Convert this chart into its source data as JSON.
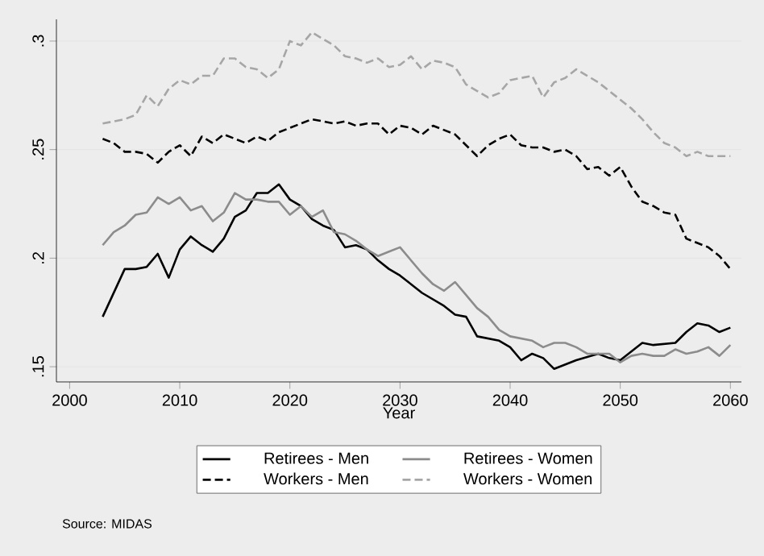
{
  "chart_data": {
    "type": "line",
    "xlabel": "Year",
    "xlim": [
      1998.8,
      2061
    ],
    "ylim": [
      0.143,
      0.31
    ],
    "xticks": [
      2000,
      2010,
      2020,
      2030,
      2040,
      2050,
      2060
    ],
    "yticks": [
      {
        "value": 0.15,
        "label": ".15"
      },
      {
        "value": 0.2,
        "label": ".2"
      },
      {
        "value": 0.25,
        "label": ".25"
      },
      {
        "value": 0.3,
        "label": ".3"
      }
    ],
    "grid": "y",
    "legend": "bottom",
    "annotations": [
      "Source: MIDAS"
    ],
    "series": [
      {
        "name": "Retirees - Men",
        "color": "#000000",
        "line_style": "solid",
        "x": [
          2003,
          2005,
          2006,
          2007,
          2008,
          2009,
          2010,
          2011,
          2012,
          2013,
          2014,
          2015,
          2016,
          2017,
          2018,
          2019,
          2020,
          2021,
          2022,
          2023,
          2024,
          2025,
          2026,
          2027,
          2028,
          2029,
          2030,
          2032,
          2034,
          2035,
          2036,
          2037,
          2039,
          2040,
          2041,
          2042,
          2043,
          2044,
          2046,
          2048,
          2049,
          2050,
          2052,
          2053,
          2055,
          2056,
          2057,
          2058,
          2059,
          2060
        ],
        "values": [
          0.173,
          0.195,
          0.195,
          0.196,
          0.202,
          0.191,
          0.204,
          0.21,
          0.206,
          0.203,
          0.209,
          0.219,
          0.222,
          0.23,
          0.23,
          0.234,
          0.227,
          0.224,
          0.218,
          0.215,
          0.213,
          0.205,
          0.206,
          0.204,
          0.199,
          0.195,
          0.192,
          0.184,
          0.178,
          0.174,
          0.173,
          0.164,
          0.162,
          0.159,
          0.153,
          0.156,
          0.154,
          0.149,
          0.153,
          0.156,
          0.154,
          0.153,
          0.161,
          0.16,
          0.161,
          0.166,
          0.17,
          0.169,
          0.166,
          0.168
        ]
      },
      {
        "name": "Retirees - Women",
        "color": "#8c8c8c",
        "line_style": "solid",
        "x": [
          2003,
          2004,
          2005,
          2006,
          2007,
          2008,
          2009,
          2010,
          2011,
          2012,
          2013,
          2014,
          2015,
          2016,
          2017,
          2018,
          2019,
          2020,
          2021,
          2022,
          2023,
          2024,
          2025,
          2026,
          2027,
          2028,
          2029,
          2030,
          2031,
          2032,
          2033,
          2034,
          2035,
          2036,
          2037,
          2038,
          2039,
          2040,
          2042,
          2043,
          2044,
          2045,
          2046,
          2047,
          2048,
          2049,
          2050,
          2051,
          2052,
          2053,
          2054,
          2055,
          2056,
          2057,
          2058,
          2059,
          2060
        ],
        "values": [
          0.206,
          0.212,
          0.215,
          0.22,
          0.221,
          0.228,
          0.225,
          0.228,
          0.222,
          0.224,
          0.217,
          0.221,
          0.23,
          0.227,
          0.227,
          0.226,
          0.226,
          0.22,
          0.224,
          0.219,
          0.222,
          0.212,
          0.211,
          0.208,
          0.204,
          0.201,
          0.203,
          0.205,
          0.199,
          0.193,
          0.188,
          0.185,
          0.189,
          0.183,
          0.177,
          0.173,
          0.167,
          0.164,
          0.162,
          0.159,
          0.161,
          0.161,
          0.159,
          0.156,
          0.156,
          0.156,
          0.152,
          0.155,
          0.156,
          0.155,
          0.155,
          0.158,
          0.156,
          0.157,
          0.159,
          0.155,
          0.16
        ]
      },
      {
        "name": "Workers - Men",
        "color": "#000000",
        "line_style": "dashed",
        "x": [
          2003,
          2004,
          2005,
          2006,
          2007,
          2008,
          2009,
          2010,
          2011,
          2012,
          2013,
          2014,
          2015,
          2016,
          2017,
          2018,
          2019,
          2020,
          2021,
          2022,
          2023,
          2024,
          2025,
          2026,
          2027,
          2028,
          2029,
          2030,
          2031,
          2032,
          2033,
          2034,
          2035,
          2036,
          2037,
          2038,
          2039,
          2040,
          2041,
          2042,
          2043,
          2044,
          2045,
          2046,
          2047,
          2048,
          2049,
          2050,
          2051,
          2052,
          2053,
          2054,
          2055,
          2056,
          2057,
          2058,
          2059,
          2060
        ],
        "values": [
          0.255,
          0.253,
          0.249,
          0.249,
          0.248,
          0.244,
          0.249,
          0.252,
          0.247,
          0.256,
          0.253,
          0.257,
          0.255,
          0.253,
          0.256,
          0.254,
          0.258,
          0.26,
          0.262,
          0.264,
          0.263,
          0.262,
          0.263,
          0.261,
          0.262,
          0.262,
          0.257,
          0.261,
          0.26,
          0.257,
          0.261,
          0.259,
          0.257,
          0.252,
          0.247,
          0.252,
          0.255,
          0.257,
          0.252,
          0.251,
          0.251,
          0.249,
          0.25,
          0.247,
          0.241,
          0.242,
          0.238,
          0.242,
          0.233,
          0.226,
          0.224,
          0.221,
          0.22,
          0.209,
          0.207,
          0.205,
          0.201,
          0.195
        ]
      },
      {
        "name": "Workers - Women",
        "color": "#a6a6a6",
        "line_style": "dashed",
        "x": [
          2003,
          2004,
          2005,
          2006,
          2007,
          2008,
          2009,
          2010,
          2011,
          2012,
          2013,
          2014,
          2015,
          2016,
          2017,
          2018,
          2019,
          2020,
          2021,
          2022,
          2023,
          2024,
          2025,
          2026,
          2027,
          2028,
          2029,
          2030,
          2031,
          2032,
          2033,
          2034,
          2035,
          2036,
          2037,
          2038,
          2039,
          2040,
          2041,
          2042,
          2043,
          2044,
          2045,
          2046,
          2047,
          2048,
          2049,
          2050,
          2051,
          2052,
          2053,
          2054,
          2055,
          2056,
          2057,
          2058,
          2059,
          2060
        ],
        "values": [
          0.262,
          0.263,
          0.264,
          0.266,
          0.275,
          0.27,
          0.278,
          0.282,
          0.28,
          0.284,
          0.284,
          0.292,
          0.292,
          0.288,
          0.287,
          0.283,
          0.287,
          0.3,
          0.298,
          0.304,
          0.301,
          0.298,
          0.293,
          0.292,
          0.29,
          0.292,
          0.288,
          0.289,
          0.293,
          0.287,
          0.291,
          0.29,
          0.288,
          0.28,
          0.277,
          0.274,
          0.276,
          0.282,
          0.283,
          0.284,
          0.274,
          0.281,
          0.283,
          0.287,
          0.284,
          0.281,
          0.277,
          0.273,
          0.269,
          0.264,
          0.258,
          0.253,
          0.251,
          0.247,
          0.249,
          0.247,
          0.247,
          0.247
        ]
      }
    ]
  }
}
